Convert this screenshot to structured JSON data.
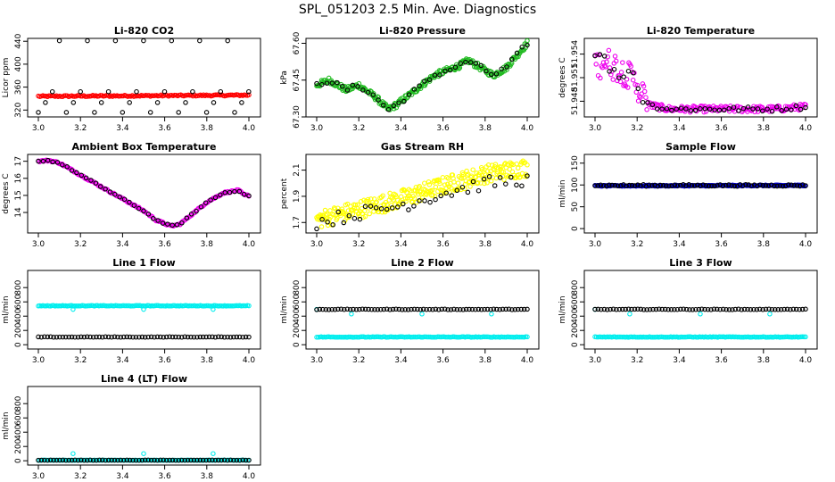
{
  "title": "SPL_051203  2.5 Min. Ave. Diagnostics",
  "chart_data": [
    {
      "type": "scatter",
      "title": "Li-820 CO2",
      "ylabel": "Licor ppm",
      "xlim": [
        3.0,
        4.0
      ],
      "ylim": [
        308,
        445
      ],
      "xticks": [
        3.0,
        3.2,
        3.4,
        3.6,
        3.8,
        4.0
      ],
      "xtick_labels": [
        "3.0",
        "3.2",
        "3.4",
        "3.6",
        "3.8",
        "4.0"
      ],
      "yticks": [
        320,
        360,
        400,
        440
      ],
      "ytick_labels": [
        "320",
        "360",
        "400",
        "440"
      ],
      "series": [
        {
          "name": "co2",
          "color": "#ff0000",
          "gen": "line",
          "n": 140,
          "y0": 344,
          "y1": 346,
          "noise": 1.2
        },
        {
          "name": "co2_ref",
          "color": "#000000",
          "gen": "levels",
          "levels": [
            316,
            333,
            352,
            441
          ],
          "step": 0.0333
        }
      ]
    },
    {
      "type": "scatter",
      "title": "Li-820 Pressure",
      "ylabel": "kPa",
      "xlim": [
        3.0,
        4.0
      ],
      "ylim": [
        67.3,
        67.62
      ],
      "xticks": [
        3.0,
        3.2,
        3.4,
        3.6,
        3.8,
        4.0
      ],
      "xtick_labels": [
        "3.0",
        "3.2",
        "3.4",
        "3.6",
        "3.8",
        "4.0"
      ],
      "yticks": [
        67.3,
        67.45,
        67.6
      ],
      "ytick_labels": [
        "67.30",
        "67.45",
        "67.60"
      ],
      "series": [
        {
          "name": "pressure",
          "color": "#22bb22",
          "gen": "keys",
          "n": 260,
          "noise": 0.012,
          "keys": [
            [
              3.0,
              67.43
            ],
            [
              3.06,
              67.45
            ],
            [
              3.14,
              67.41
            ],
            [
              3.2,
              67.43
            ],
            [
              3.28,
              67.38
            ],
            [
              3.34,
              67.33
            ],
            [
              3.38,
              67.35
            ],
            [
              3.44,
              67.39
            ],
            [
              3.5,
              67.43
            ],
            [
              3.56,
              67.47
            ],
            [
              3.62,
              67.49
            ],
            [
              3.68,
              67.51
            ],
            [
              3.72,
              67.53
            ],
            [
              3.78,
              67.5
            ],
            [
              3.84,
              67.47
            ],
            [
              3.9,
              67.5
            ],
            [
              3.96,
              67.56
            ],
            [
              4.0,
              67.6
            ]
          ]
        },
        {
          "name": "pressure_ref",
          "color": "#000000",
          "gen": "keys",
          "n": 42,
          "noise": 0.01,
          "keys": [
            [
              3.0,
              67.43
            ],
            [
              3.06,
              67.45
            ],
            [
              3.14,
              67.41
            ],
            [
              3.2,
              67.43
            ],
            [
              3.28,
              67.38
            ],
            [
              3.34,
              67.33
            ],
            [
              3.38,
              67.35
            ],
            [
              3.44,
              67.39
            ],
            [
              3.5,
              67.43
            ],
            [
              3.56,
              67.47
            ],
            [
              3.62,
              67.49
            ],
            [
              3.68,
              67.51
            ],
            [
              3.72,
              67.53
            ],
            [
              3.78,
              67.5
            ],
            [
              3.84,
              67.47
            ],
            [
              3.9,
              67.5
            ],
            [
              3.96,
              67.56
            ],
            [
              4.0,
              67.6
            ]
          ]
        }
      ]
    },
    {
      "type": "scatter",
      "title": "Li-820 Temperature",
      "ylabel": "degrees C",
      "xlim": [
        3.0,
        4.0
      ],
      "ylim": [
        51.946,
        51.956
      ],
      "xticks": [
        3.0,
        3.2,
        3.4,
        3.6,
        3.8,
        4.0
      ],
      "xtick_labels": [
        "3.0",
        "3.2",
        "3.4",
        "3.6",
        "3.8",
        "4.0"
      ],
      "yticks": [
        51.948,
        51.951,
        51.954
      ],
      "ytick_labels": [
        "51.948",
        "51.951",
        "51.954"
      ],
      "series": [
        {
          "name": "temperature",
          "color": "#ee00ee",
          "gen": "keys",
          "n": 200,
          "noise": 0.0004,
          "clip": true,
          "keys": [
            [
              3.0,
              51.953
            ],
            [
              3.05,
              51.953
            ],
            [
              3.12,
              51.952
            ],
            [
              3.18,
              51.951
            ],
            [
              3.22,
              51.949
            ],
            [
              3.26,
              51.9475
            ],
            [
              3.35,
              51.947
            ],
            [
              3.6,
              51.947
            ],
            [
              3.85,
              51.947
            ],
            [
              4.0,
              51.9473
            ]
          ],
          "extra_noise_until": 3.25,
          "extra_noise": 0.0018
        },
        {
          "name": "temperature_ref",
          "color": "#000000",
          "gen": "keys",
          "n": 45,
          "noise": 0.0003,
          "clip": true,
          "keys": [
            [
              3.0,
              51.953
            ],
            [
              3.05,
              51.953
            ],
            [
              3.12,
              51.952
            ],
            [
              3.18,
              51.951
            ],
            [
              3.22,
              51.949
            ],
            [
              3.26,
              51.9475
            ],
            [
              3.35,
              51.947
            ],
            [
              3.6,
              51.947
            ],
            [
              3.85,
              51.947
            ],
            [
              4.0,
              51.9473
            ]
          ],
          "extra_noise_until": 3.25,
          "extra_noise": 0.0012
        }
      ]
    },
    {
      "type": "scatter",
      "title": "Ambient Box Temperature",
      "ylabel": "degrees C",
      "xlim": [
        3.0,
        4.0
      ],
      "ylim": [
        12.8,
        17.4
      ],
      "xticks": [
        3.0,
        3.2,
        3.4,
        3.6,
        3.8,
        4.0
      ],
      "xtick_labels": [
        "3.0",
        "3.2",
        "3.4",
        "3.6",
        "3.8",
        "4.0"
      ],
      "yticks": [
        14,
        15,
        16,
        17
      ],
      "ytick_labels": [
        "14",
        "15",
        "16",
        "17"
      ],
      "series": [
        {
          "name": "box_temp",
          "color": "#ee00ee",
          "gen": "keys",
          "n": 160,
          "noise": 0.05,
          "keys": [
            [
              3.0,
              17.0
            ],
            [
              3.05,
              17.05
            ],
            [
              3.1,
              16.9
            ],
            [
              3.2,
              16.2
            ],
            [
              3.3,
              15.5
            ],
            [
              3.4,
              14.8
            ],
            [
              3.5,
              14.1
            ],
            [
              3.56,
              13.55
            ],
            [
              3.63,
              13.2
            ],
            [
              3.67,
              13.3
            ],
            [
              3.73,
              13.9
            ],
            [
              3.8,
              14.6
            ],
            [
              3.88,
              15.15
            ],
            [
              3.95,
              15.3
            ],
            [
              3.98,
              15.0
            ]
          ]
        },
        {
          "name": "box_temp_ref",
          "color": "#000000",
          "gen": "keys",
          "n": 45,
          "noise": 0.04,
          "keys": [
            [
              3.0,
              17.0
            ],
            [
              3.05,
              17.05
            ],
            [
              3.1,
              16.9
            ],
            [
              3.2,
              16.2
            ],
            [
              3.3,
              15.5
            ],
            [
              3.4,
              14.8
            ],
            [
              3.5,
              14.1
            ],
            [
              3.56,
              13.55
            ],
            [
              3.63,
              13.2
            ],
            [
              3.67,
              13.3
            ],
            [
              3.73,
              13.9
            ],
            [
              3.8,
              14.6
            ],
            [
              3.88,
              15.15
            ],
            [
              3.95,
              15.3
            ],
            [
              3.98,
              15.0
            ]
          ]
        }
      ]
    },
    {
      "type": "scatter",
      "title": "Gas Stream RH",
      "ylabel": "percent",
      "xlim": [
        3.0,
        4.0
      ],
      "ylim": [
        1.62,
        2.22
      ],
      "xticks": [
        3.0,
        3.2,
        3.4,
        3.6,
        3.8,
        4.0
      ],
      "xtick_labels": [
        "3.0",
        "3.2",
        "3.4",
        "3.6",
        "3.8",
        "4.0"
      ],
      "yticks": [
        1.7,
        1.9,
        2.1
      ],
      "ytick_labels": [
        "1.7",
        "1.9",
        "2.1"
      ],
      "series": [
        {
          "name": "rh",
          "color": "#ffff00",
          "gen": "keys",
          "n": 300,
          "noise": 0.07,
          "clip": true,
          "keys": [
            [
              3.0,
              1.72
            ],
            [
              3.2,
              1.8
            ],
            [
              3.4,
              1.88
            ],
            [
              3.6,
              1.98
            ],
            [
              3.8,
              2.07
            ],
            [
              4.0,
              2.12
            ]
          ]
        },
        {
          "name": "rh_ref",
          "color": "#000000",
          "gen": "keys",
          "n": 40,
          "noise": 0.05,
          "clip": true,
          "keys": [
            [
              3.0,
              1.7
            ],
            [
              3.2,
              1.77
            ],
            [
              3.4,
              1.83
            ],
            [
              3.6,
              1.92
            ],
            [
              3.8,
              2.0
            ],
            [
              4.0,
              2.03
            ]
          ]
        }
      ]
    },
    {
      "type": "scatter",
      "title": "Sample Flow",
      "ylabel": "ml/min",
      "xlim": [
        3.0,
        4.0
      ],
      "ylim": [
        -10,
        170
      ],
      "xticks": [
        3.0,
        3.2,
        3.4,
        3.6,
        3.8,
        4.0
      ],
      "xtick_labels": [
        "3.0",
        "3.2",
        "3.4",
        "3.6",
        "3.8",
        "4.0"
      ],
      "yticks": [
        0,
        50,
        100,
        150
      ],
      "ytick_labels": [
        "0",
        "50",
        "100",
        "150"
      ],
      "series": [
        {
          "name": "sample_flow",
          "color": "#0000cc",
          "gen": "line",
          "n": 180,
          "y0": 98,
          "y1": 99,
          "noise": 1.2
        },
        {
          "name": "sample_flow_ref",
          "color": "#000000",
          "gen": "line",
          "n": 75,
          "y0": 99,
          "y1": 99,
          "noise": 2.0
        }
      ]
    },
    {
      "type": "scatter",
      "title": "Line 1 Flow",
      "ylabel": "ml/min",
      "xlim": [
        3.0,
        4.0
      ],
      "ylim": [
        -60,
        1040
      ],
      "xticks": [
        3.0,
        3.2,
        3.4,
        3.6,
        3.8,
        4.0
      ],
      "xtick_labels": [
        "3.0",
        "3.2",
        "3.4",
        "3.6",
        "3.8",
        "4.0"
      ],
      "yticks": [
        0,
        200,
        400,
        600,
        800
      ],
      "ytick_labels": [
        "0",
        "200",
        "400",
        "600",
        "800"
      ],
      "series": [
        {
          "name": "line1_flow",
          "color": "#00eeee",
          "gen": "line",
          "n": 140,
          "y0": 545,
          "y1": 545,
          "noise": 4,
          "dips": [
            [
              3.165,
              495
            ],
            [
              3.5,
              495
            ],
            [
              3.83,
              495
            ]
          ]
        },
        {
          "name": "line1_flow_ref",
          "color": "#000000",
          "gen": "line",
          "n": 70,
          "y0": 108,
          "y1": 108,
          "noise": 3
        }
      ]
    },
    {
      "type": "scatter",
      "title": "Line 2 Flow",
      "ylabel": "ml/min",
      "xlim": [
        3.0,
        4.0
      ],
      "ylim": [
        -60,
        1040
      ],
      "xticks": [
        3.0,
        3.2,
        3.4,
        3.6,
        3.8,
        4.0
      ],
      "xtick_labels": [
        "3.0",
        "3.2",
        "3.4",
        "3.6",
        "3.8",
        "4.0"
      ],
      "yticks": [
        0,
        200,
        400,
        600,
        800
      ],
      "ytick_labels": [
        "0",
        "200",
        "400",
        "600",
        "800"
      ],
      "series": [
        {
          "name": "line2_flow",
          "color": "#00eeee",
          "gen": "line",
          "n": 140,
          "y0": 108,
          "y1": 108,
          "noise": 4,
          "dips": [
            [
              3.0,
              495
            ],
            [
              3.165,
              430
            ],
            [
              3.5,
              430
            ],
            [
              3.83,
              430
            ]
          ]
        },
        {
          "name": "line2_flow_ref",
          "color": "#000000",
          "gen": "line",
          "n": 70,
          "y0": 495,
          "y1": 495,
          "noise": 4
        }
      ]
    },
    {
      "type": "scatter",
      "title": "Line 3 Flow",
      "ylabel": "ml/min",
      "xlim": [
        3.0,
        4.0
      ],
      "ylim": [
        -60,
        1040
      ],
      "xticks": [
        3.0,
        3.2,
        3.4,
        3.6,
        3.8,
        4.0
      ],
      "xtick_labels": [
        "3.0",
        "3.2",
        "3.4",
        "3.6",
        "3.8",
        "4.0"
      ],
      "yticks": [
        0,
        200,
        400,
        600,
        800
      ],
      "ytick_labels": [
        "0",
        "200",
        "400",
        "600",
        "800"
      ],
      "series": [
        {
          "name": "line3_flow",
          "color": "#00eeee",
          "gen": "line",
          "n": 140,
          "y0": 108,
          "y1": 108,
          "noise": 4,
          "dips": [
            [
              3.0,
              495
            ],
            [
              3.165,
              430
            ],
            [
              3.5,
              430
            ],
            [
              3.83,
              430
            ]
          ]
        },
        {
          "name": "line3_flow_ref",
          "color": "#000000",
          "gen": "line",
          "n": 70,
          "y0": 495,
          "y1": 495,
          "noise": 4
        }
      ]
    },
    {
      "type": "scatter",
      "title": "Line 4 (LT) Flow",
      "ylabel": "ml/min",
      "xlim": [
        3.0,
        4.0
      ],
      "ylim": [
        -60,
        1040
      ],
      "xticks": [
        3.0,
        3.2,
        3.4,
        3.6,
        3.8,
        4.0
      ],
      "xtick_labels": [
        "3.0",
        "3.2",
        "3.4",
        "3.6",
        "3.8",
        "4.0"
      ],
      "yticks": [
        0,
        200,
        400,
        600,
        800
      ],
      "ytick_labels": [
        "0",
        "200",
        "400",
        "600",
        "800"
      ],
      "series": [
        {
          "name": "line4_flow",
          "color": "#00eeee",
          "gen": "line",
          "n": 140,
          "y0": 8,
          "y1": 8,
          "noise": 2,
          "dips": [
            [
              3.165,
              100
            ],
            [
              3.5,
              100
            ],
            [
              3.83,
              100
            ]
          ]
        },
        {
          "name": "line4_flow_ref",
          "color": "#000000",
          "gen": "line",
          "n": 70,
          "y0": 8,
          "y1": 8,
          "noise": 2
        }
      ]
    }
  ]
}
